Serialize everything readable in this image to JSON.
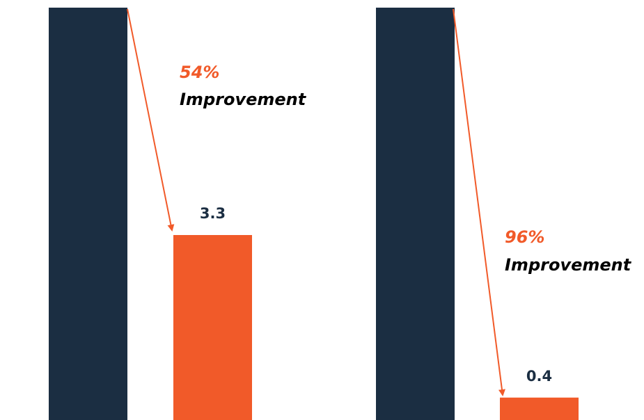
{
  "chart_data": [
    {
      "type": "bar",
      "categories": [
        "",
        ""
      ],
      "values": [
        null,
        3.3
      ],
      "data_labels": [
        "",
        "3.3"
      ],
      "annotation": {
        "percent": "54%",
        "text": "Improvement"
      },
      "title": "",
      "xlabel": "",
      "ylabel": ""
    },
    {
      "type": "bar",
      "categories": [
        "",
        ""
      ],
      "values": [
        null,
        0.4
      ],
      "data_labels": [
        "",
        "0.4"
      ],
      "annotation": {
        "percent": "96%",
        "text": "Improvement"
      },
      "title": "",
      "xlabel": "",
      "ylabel": ""
    }
  ],
  "colors": {
    "before": "#1B2E42",
    "after": "#F15A29",
    "label": "#1B2E42",
    "accent": "#F15A29",
    "text": "#000000"
  }
}
